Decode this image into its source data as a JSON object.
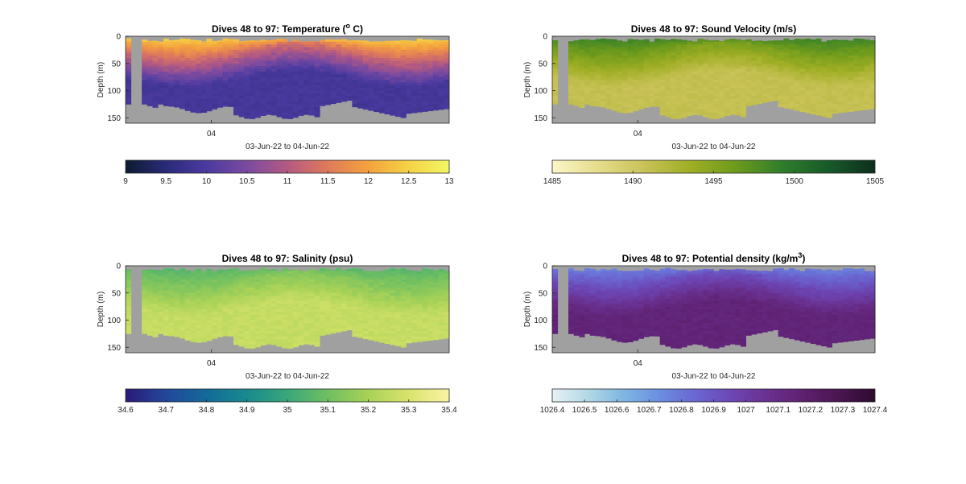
{
  "chart_data": [
    {
      "type": "heatmap",
      "title": "Dives 48 to 97: Temperature (",
      "title_sup": "o",
      "title_end": " C)",
      "xlabel": "03-Jun-22 to 04-Jun-22",
      "ylabel": "Depth (m)",
      "x_tick_labels": [
        "04"
      ],
      "y_ticks": [
        0,
        50,
        100,
        150
      ],
      "ylim": [
        0,
        160
      ],
      "dives": [
        48,
        97
      ],
      "colorbar": {
        "min": 9,
        "max": 13,
        "ticks": [
          "9",
          "9.5",
          "10",
          "10.5",
          "11",
          "11.5",
          "12",
          "12.5",
          "13"
        ],
        "colors": [
          "#0d1b2f",
          "#2a2a7a",
          "#4b3aa0",
          "#7a4aa0",
          "#b45a82",
          "#e07a5a",
          "#f4a23e",
          "#f6d245",
          "#f3f763"
        ]
      },
      "surface_value": 12.6,
      "mid_value": 10.5,
      "deep_value": 9.9,
      "colormap_name": "thermal",
      "missing_color": "#a0a0a0"
    },
    {
      "type": "heatmap",
      "title": "Dives 48 to 97: Sound Velocity (m/s)",
      "xlabel": "03-Jun-22 to 04-Jun-22",
      "ylabel": "Depth (m)",
      "x_tick_labels": [
        "04"
      ],
      "y_ticks": [
        0,
        50,
        100,
        150
      ],
      "ylim": [
        0,
        160
      ],
      "dives": [
        48,
        97
      ],
      "colorbar": {
        "min": 1485,
        "max": 1505,
        "ticks": [
          "1485",
          "1490",
          "1495",
          "1500",
          "1505"
        ],
        "colors": [
          "#fbf6c8",
          "#e5dc8a",
          "#c9c257",
          "#9fae24",
          "#6c9a1c",
          "#2f7d2b",
          "#175a2a",
          "#0d2e1c"
        ]
      },
      "surface_value": 1499,
      "mid_value": 1493,
      "deep_value": 1491,
      "colormap_name": "speed",
      "missing_color": "#a0a0a0"
    },
    {
      "type": "heatmap",
      "title": "Dives 48 to 97: Salinity (psu)",
      "xlabel": "03-Jun-22 to 04-Jun-22",
      "ylabel": "Depth (m)",
      "x_tick_labels": [
        "04"
      ],
      "y_ticks": [
        0,
        50,
        100,
        150
      ],
      "ylim": [
        0,
        160
      ],
      "dives": [
        48,
        97
      ],
      "colorbar": {
        "min": 34.6,
        "max": 35.4,
        "ticks": [
          "34.6",
          "34.7",
          "34.8",
          "34.9",
          "35",
          "35.1",
          "35.2",
          "35.3",
          "35.4"
        ],
        "colors": [
          "#2a1a78",
          "#22479a",
          "#146a9a",
          "#188a8e",
          "#3aa77a",
          "#6fbf61",
          "#a8d257",
          "#d9e36c",
          "#fbf3a4"
        ]
      },
      "surface_value": 35.05,
      "mid_value": 35.2,
      "deep_value": 35.26,
      "colormap_name": "haline",
      "missing_color": "#a0a0a0"
    },
    {
      "type": "heatmap",
      "title": "Dives 48 to 97: Potential density (kg/m",
      "title_sup": "3",
      "title_end": ")",
      "xlabel": "03-Jun-22 to 04-Jun-22",
      "ylabel": "Depth (m)",
      "x_tick_labels": [
        "04"
      ],
      "y_ticks": [
        0,
        50,
        100,
        150
      ],
      "ylim": [
        0,
        160
      ],
      "dives": [
        48,
        97
      ],
      "colorbar": {
        "min": 1026.4,
        "max": 1027.4,
        "ticks": [
          "1026.4",
          "1026.5",
          "1026.6",
          "1026.7",
          "1026.8",
          "1026.9",
          "1027",
          "1027.1",
          "1027.2",
          "1027.3",
          "1027.4"
        ],
        "colors": [
          "#e7f2f5",
          "#b2d8e6",
          "#7eb6e2",
          "#6a8ee0",
          "#6a66d2",
          "#6c46b4",
          "#69308f",
          "#5e2070",
          "#4a1550",
          "#2e0b2e"
        ]
      },
      "surface_value": 1026.75,
      "mid_value": 1027.05,
      "deep_value": 1027.15,
      "colormap_name": "dense",
      "missing_color": "#a0a0a0"
    }
  ]
}
